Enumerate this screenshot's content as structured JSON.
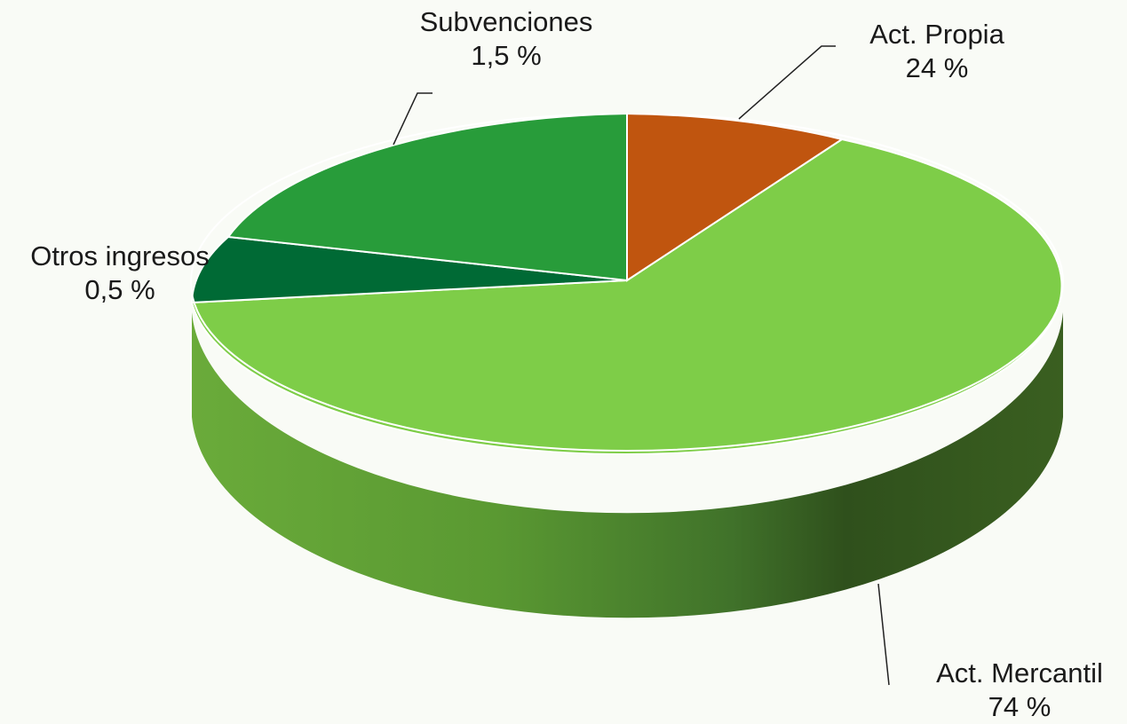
{
  "chart_data": {
    "type": "pie",
    "style": "3d",
    "slices": [
      {
        "name": "Act. Propia",
        "value": 24,
        "display": "24 %",
        "color": "#c0550f"
      },
      {
        "name": "Act. Mercantil",
        "value": 74,
        "display": "74 %",
        "color": "#7ecd48"
      },
      {
        "name": "Otros ingresos",
        "value": 0.5,
        "display": "0,5 %",
        "color": "#006a35"
      },
      {
        "name": "Subvenciones",
        "value": 1.5,
        "display": "1,5 %",
        "color": "#289c3a"
      }
    ],
    "legend": "none",
    "data_labels": "outside with leader lines"
  }
}
